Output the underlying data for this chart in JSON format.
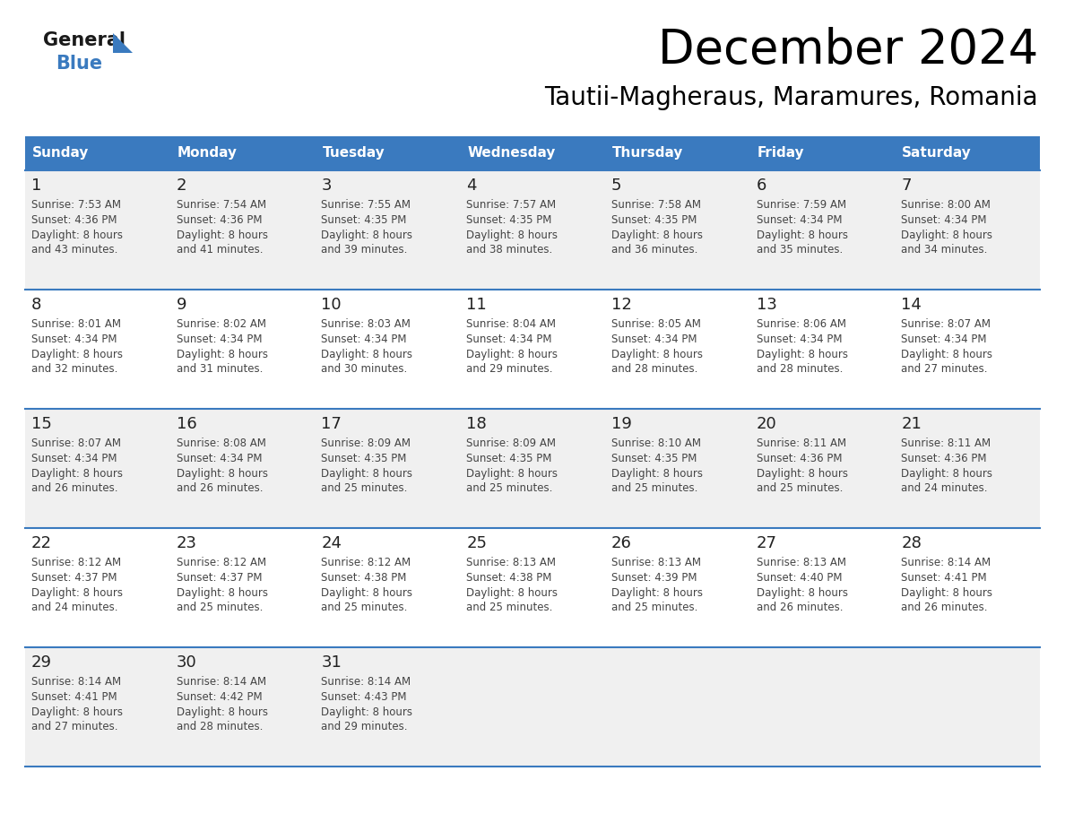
{
  "title": "December 2024",
  "subtitle": "Tautii-Magheraus, Maramures, Romania",
  "days_of_week": [
    "Sunday",
    "Monday",
    "Tuesday",
    "Wednesday",
    "Thursday",
    "Friday",
    "Saturday"
  ],
  "header_bg": "#3a7abf",
  "header_text": "#ffffff",
  "row_bg_odd": "#f0f0f0",
  "row_bg_even": "#ffffff",
  "day_number_color": "#222222",
  "text_color": "#444444",
  "divider_color": "#3a7abf",
  "general_color": "#222222",
  "blue_color": "#3a7abf",
  "calendar_data": [
    [
      {
        "day": 1,
        "sunrise": "7:53 AM",
        "sunset": "4:36 PM",
        "daylight": "8 hours and 43 minutes"
      },
      {
        "day": 2,
        "sunrise": "7:54 AM",
        "sunset": "4:36 PM",
        "daylight": "8 hours and 41 minutes"
      },
      {
        "day": 3,
        "sunrise": "7:55 AM",
        "sunset": "4:35 PM",
        "daylight": "8 hours and 39 minutes"
      },
      {
        "day": 4,
        "sunrise": "7:57 AM",
        "sunset": "4:35 PM",
        "daylight": "8 hours and 38 minutes"
      },
      {
        "day": 5,
        "sunrise": "7:58 AM",
        "sunset": "4:35 PM",
        "daylight": "8 hours and 36 minutes"
      },
      {
        "day": 6,
        "sunrise": "7:59 AM",
        "sunset": "4:34 PM",
        "daylight": "8 hours and 35 minutes"
      },
      {
        "day": 7,
        "sunrise": "8:00 AM",
        "sunset": "4:34 PM",
        "daylight": "8 hours and 34 minutes"
      }
    ],
    [
      {
        "day": 8,
        "sunrise": "8:01 AM",
        "sunset": "4:34 PM",
        "daylight": "8 hours and 32 minutes"
      },
      {
        "day": 9,
        "sunrise": "8:02 AM",
        "sunset": "4:34 PM",
        "daylight": "8 hours and 31 minutes"
      },
      {
        "day": 10,
        "sunrise": "8:03 AM",
        "sunset": "4:34 PM",
        "daylight": "8 hours and 30 minutes"
      },
      {
        "day": 11,
        "sunrise": "8:04 AM",
        "sunset": "4:34 PM",
        "daylight": "8 hours and 29 minutes"
      },
      {
        "day": 12,
        "sunrise": "8:05 AM",
        "sunset": "4:34 PM",
        "daylight": "8 hours and 28 minutes"
      },
      {
        "day": 13,
        "sunrise": "8:06 AM",
        "sunset": "4:34 PM",
        "daylight": "8 hours and 28 minutes"
      },
      {
        "day": 14,
        "sunrise": "8:07 AM",
        "sunset": "4:34 PM",
        "daylight": "8 hours and 27 minutes"
      }
    ],
    [
      {
        "day": 15,
        "sunrise": "8:07 AM",
        "sunset": "4:34 PM",
        "daylight": "8 hours and 26 minutes"
      },
      {
        "day": 16,
        "sunrise": "8:08 AM",
        "sunset": "4:34 PM",
        "daylight": "8 hours and 26 minutes"
      },
      {
        "day": 17,
        "sunrise": "8:09 AM",
        "sunset": "4:35 PM",
        "daylight": "8 hours and 25 minutes"
      },
      {
        "day": 18,
        "sunrise": "8:09 AM",
        "sunset": "4:35 PM",
        "daylight": "8 hours and 25 minutes"
      },
      {
        "day": 19,
        "sunrise": "8:10 AM",
        "sunset": "4:35 PM",
        "daylight": "8 hours and 25 minutes"
      },
      {
        "day": 20,
        "sunrise": "8:11 AM",
        "sunset": "4:36 PM",
        "daylight": "8 hours and 25 minutes"
      },
      {
        "day": 21,
        "sunrise": "8:11 AM",
        "sunset": "4:36 PM",
        "daylight": "8 hours and 24 minutes"
      }
    ],
    [
      {
        "day": 22,
        "sunrise": "8:12 AM",
        "sunset": "4:37 PM",
        "daylight": "8 hours and 24 minutes"
      },
      {
        "day": 23,
        "sunrise": "8:12 AM",
        "sunset": "4:37 PM",
        "daylight": "8 hours and 25 minutes"
      },
      {
        "day": 24,
        "sunrise": "8:12 AM",
        "sunset": "4:38 PM",
        "daylight": "8 hours and 25 minutes"
      },
      {
        "day": 25,
        "sunrise": "8:13 AM",
        "sunset": "4:38 PM",
        "daylight": "8 hours and 25 minutes"
      },
      {
        "day": 26,
        "sunrise": "8:13 AM",
        "sunset": "4:39 PM",
        "daylight": "8 hours and 25 minutes"
      },
      {
        "day": 27,
        "sunrise": "8:13 AM",
        "sunset": "4:40 PM",
        "daylight": "8 hours and 26 minutes"
      },
      {
        "day": 28,
        "sunrise": "8:14 AM",
        "sunset": "4:41 PM",
        "daylight": "8 hours and 26 minutes"
      }
    ],
    [
      {
        "day": 29,
        "sunrise": "8:14 AM",
        "sunset": "4:41 PM",
        "daylight": "8 hours and 27 minutes"
      },
      {
        "day": 30,
        "sunrise": "8:14 AM",
        "sunset": "4:42 PM",
        "daylight": "8 hours and 28 minutes"
      },
      {
        "day": 31,
        "sunrise": "8:14 AM",
        "sunset": "4:43 PM",
        "daylight": "8 hours and 29 minutes"
      },
      null,
      null,
      null,
      null
    ]
  ]
}
